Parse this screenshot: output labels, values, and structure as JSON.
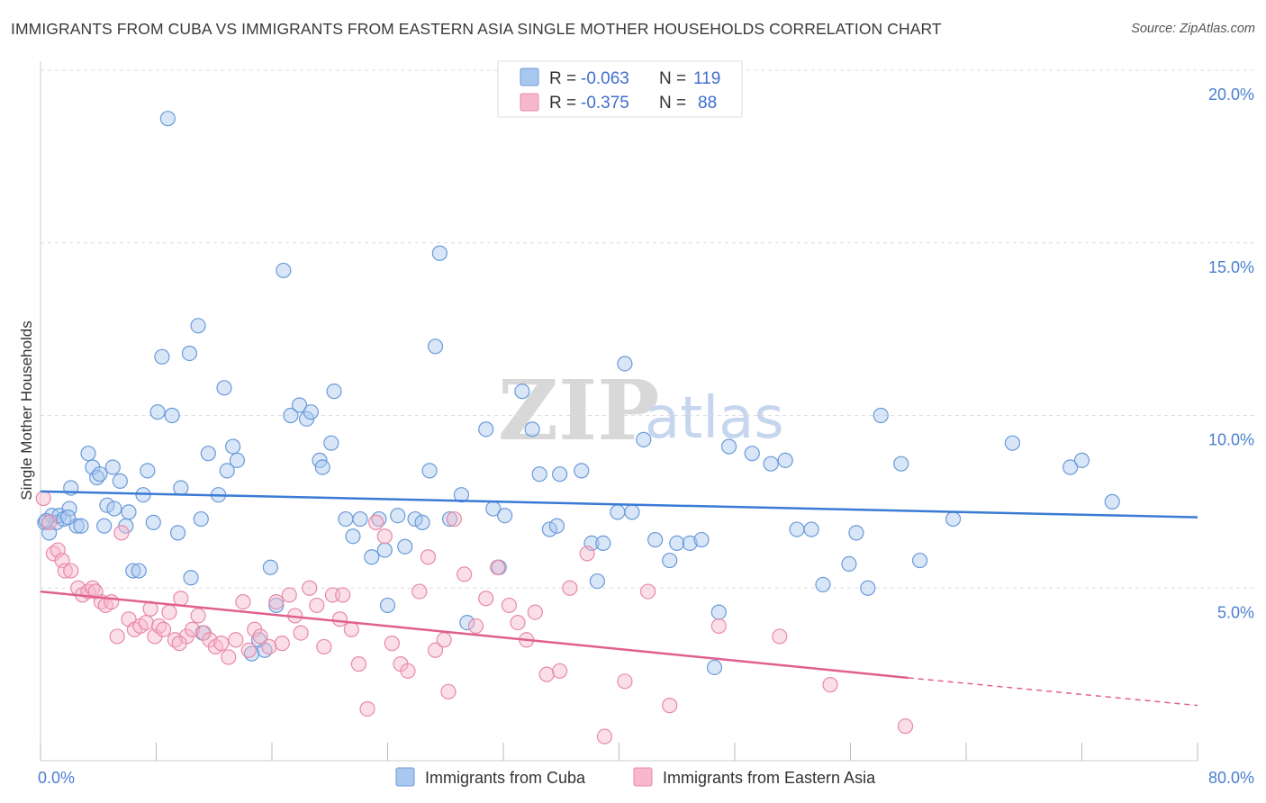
{
  "title": "IMMIGRANTS FROM CUBA VS IMMIGRANTS FROM EASTERN ASIA SINGLE MOTHER HOUSEHOLDS CORRELATION CHART",
  "source": "Source: ZipAtlas.com",
  "watermark": {
    "zip": "ZIP",
    "atlas": "atlas"
  },
  "colors": {
    "cuba_fill": "#a9c8f0",
    "cuba_stroke": "#6a9ad8",
    "cuba_line": "#3a7bd5",
    "asia_fill": "#f7b8cc",
    "asia_stroke": "#e88aa8",
    "asia_line": "#e0608f",
    "grid": "#dddddd",
    "tick_label": "#4a7fd1"
  },
  "legend": {
    "rows": [
      {
        "r_label": "R =",
        "r_value": "-0.063",
        "n_label": "N =",
        "n_value": "119"
      },
      {
        "r_label": "R =",
        "r_value": "-0.375",
        "n_label": "N =",
        "n_value": "88"
      }
    ]
  },
  "chart_data": {
    "type": "scatter",
    "title": "IMMIGRANTS FROM CUBA VS IMMIGRANTS FROM EASTERN ASIA SINGLE MOTHER HOUSEHOLDS CORRELATION CHART",
    "xlabel": "",
    "ylabel": "Single Mother Households",
    "xlim": [
      0,
      80
    ],
    "ylim": [
      0,
      20
    ],
    "x_tick_labels": [
      "0.0%",
      "80.0%"
    ],
    "y_ticks": [
      5,
      10,
      15,
      20
    ],
    "y_tick_labels": [
      "5.0%",
      "10.0%",
      "15.0%",
      "20.0%"
    ],
    "grid": "horizontal dashed",
    "legend_position": "top-center",
    "series": [
      {
        "name": "Immigrants from Cuba",
        "r": -0.063,
        "n": 119,
        "trend": {
          "x0": 0,
          "y0": 7.8,
          "x1": 80,
          "y1": 7.05
        },
        "points": [
          [
            0.3,
            6.9
          ],
          [
            0.6,
            6.6
          ],
          [
            0.8,
            7.1
          ],
          [
            1.1,
            6.9
          ],
          [
            1.3,
            7.1
          ],
          [
            1.6,
            7.0
          ],
          [
            2.0,
            7.3
          ],
          [
            2.1,
            7.9
          ],
          [
            2.5,
            6.8
          ],
          [
            2.8,
            6.8
          ],
          [
            3.3,
            8.9
          ],
          [
            3.6,
            8.5
          ],
          [
            3.9,
            8.2
          ],
          [
            4.1,
            8.3
          ],
          [
            4.4,
            6.8
          ],
          [
            4.6,
            7.4
          ],
          [
            5.0,
            8.5
          ],
          [
            5.1,
            7.3
          ],
          [
            5.5,
            8.1
          ],
          [
            5.9,
            6.8
          ],
          [
            6.1,
            7.2
          ],
          [
            6.4,
            5.5
          ],
          [
            6.8,
            5.5
          ],
          [
            7.1,
            7.7
          ],
          [
            7.4,
            8.4
          ],
          [
            7.8,
            6.9
          ],
          [
            8.1,
            10.1
          ],
          [
            8.4,
            11.7
          ],
          [
            8.8,
            18.6
          ],
          [
            9.1,
            10.0
          ],
          [
            9.5,
            6.6
          ],
          [
            9.7,
            7.9
          ],
          [
            10.3,
            11.8
          ],
          [
            10.4,
            5.3
          ],
          [
            10.9,
            12.6
          ],
          [
            11.2,
            3.7
          ],
          [
            11.6,
            8.9
          ],
          [
            12.3,
            7.7
          ],
          [
            12.7,
            10.8
          ],
          [
            12.9,
            8.4
          ],
          [
            13.3,
            9.1
          ],
          [
            13.6,
            8.7
          ],
          [
            14.6,
            3.1
          ],
          [
            15.1,
            3.5
          ],
          [
            15.5,
            3.2
          ],
          [
            15.9,
            5.6
          ],
          [
            16.3,
            4.5
          ],
          [
            16.8,
            14.2
          ],
          [
            17.3,
            10.0
          ],
          [
            17.9,
            10.3
          ],
          [
            18.4,
            9.9
          ],
          [
            18.7,
            10.1
          ],
          [
            19.3,
            8.7
          ],
          [
            19.5,
            8.5
          ],
          [
            20.1,
            9.2
          ],
          [
            20.3,
            10.7
          ],
          [
            21.1,
            7.0
          ],
          [
            21.6,
            6.5
          ],
          [
            22.1,
            7.0
          ],
          [
            22.9,
            5.9
          ],
          [
            23.4,
            7.0
          ],
          [
            23.8,
            6.1
          ],
          [
            24.7,
            7.1
          ],
          [
            25.2,
            6.2
          ],
          [
            25.9,
            7.0
          ],
          [
            26.4,
            6.9
          ],
          [
            26.9,
            8.4
          ],
          [
            27.3,
            12.0
          ],
          [
            27.6,
            14.7
          ],
          [
            28.3,
            7.0
          ],
          [
            29.1,
            7.7
          ],
          [
            29.5,
            4.0
          ],
          [
            30.8,
            9.6
          ],
          [
            31.3,
            7.3
          ],
          [
            31.7,
            5.6
          ],
          [
            32.1,
            7.1
          ],
          [
            33.3,
            10.7
          ],
          [
            34.0,
            9.6
          ],
          [
            34.5,
            8.3
          ],
          [
            35.2,
            6.7
          ],
          [
            35.9,
            8.3
          ],
          [
            37.4,
            8.4
          ],
          [
            38.1,
            6.3
          ],
          [
            38.5,
            5.2
          ],
          [
            38.9,
            6.3
          ],
          [
            39.9,
            7.2
          ],
          [
            40.4,
            11.5
          ],
          [
            40.9,
            7.2
          ],
          [
            41.7,
            9.3
          ],
          [
            42.5,
            6.4
          ],
          [
            43.5,
            5.8
          ],
          [
            44.0,
            6.3
          ],
          [
            44.9,
            6.3
          ],
          [
            45.7,
            6.4
          ],
          [
            46.6,
            2.7
          ],
          [
            46.9,
            4.3
          ],
          [
            47.6,
            9.1
          ],
          [
            49.2,
            8.9
          ],
          [
            50.5,
            8.6
          ],
          [
            51.5,
            8.7
          ],
          [
            52.3,
            6.7
          ],
          [
            53.3,
            6.7
          ],
          [
            54.1,
            5.1
          ],
          [
            55.9,
            5.7
          ],
          [
            56.4,
            6.6
          ],
          [
            57.2,
            5.0
          ],
          [
            58.1,
            10.0
          ],
          [
            59.5,
            8.6
          ],
          [
            60.8,
            5.8
          ],
          [
            63.1,
            7.0
          ],
          [
            67.2,
            9.2
          ],
          [
            71.2,
            8.5
          ],
          [
            72.0,
            8.7
          ],
          [
            74.1,
            7.5
          ],
          [
            35.7,
            6.8
          ],
          [
            24.0,
            4.5
          ],
          [
            11.1,
            7.0
          ],
          [
            0.4,
            6.95
          ],
          [
            1.9,
            7.05
          ]
        ]
      },
      {
        "name": "Immigrants from Eastern Asia",
        "r": -0.375,
        "n": 88,
        "trend": {
          "x0": 0,
          "y0": 4.9,
          "x1": 60,
          "y1": 2.4
        },
        "trend_dashed_to": {
          "x": 80,
          "y": 1.6
        },
        "points": [
          [
            0.2,
            7.6
          ],
          [
            0.6,
            6.9
          ],
          [
            0.9,
            6.0
          ],
          [
            1.2,
            6.1
          ],
          [
            1.5,
            5.8
          ],
          [
            1.7,
            5.5
          ],
          [
            2.1,
            5.5
          ],
          [
            2.6,
            5.0
          ],
          [
            2.9,
            4.8
          ],
          [
            3.3,
            4.9
          ],
          [
            3.6,
            5.0
          ],
          [
            3.8,
            4.9
          ],
          [
            4.2,
            4.6
          ],
          [
            4.5,
            4.5
          ],
          [
            4.9,
            4.6
          ],
          [
            5.3,
            3.6
          ],
          [
            5.6,
            6.6
          ],
          [
            6.1,
            4.1
          ],
          [
            6.5,
            3.8
          ],
          [
            6.9,
            3.9
          ],
          [
            7.3,
            4.0
          ],
          [
            7.6,
            4.4
          ],
          [
            7.9,
            3.6
          ],
          [
            8.2,
            3.9
          ],
          [
            8.5,
            3.8
          ],
          [
            8.9,
            4.3
          ],
          [
            9.3,
            3.5
          ],
          [
            9.7,
            4.7
          ],
          [
            10.1,
            3.6
          ],
          [
            10.5,
            3.8
          ],
          [
            10.9,
            4.2
          ],
          [
            11.3,
            3.7
          ],
          [
            11.7,
            3.5
          ],
          [
            12.1,
            3.3
          ],
          [
            12.5,
            3.4
          ],
          [
            13.0,
            3.0
          ],
          [
            13.5,
            3.5
          ],
          [
            14.0,
            4.6
          ],
          [
            14.4,
            3.2
          ],
          [
            14.8,
            3.8
          ],
          [
            15.2,
            3.6
          ],
          [
            15.8,
            3.3
          ],
          [
            16.3,
            4.6
          ],
          [
            16.7,
            3.4
          ],
          [
            17.2,
            4.8
          ],
          [
            17.6,
            4.2
          ],
          [
            18.0,
            3.7
          ],
          [
            18.6,
            5.0
          ],
          [
            19.1,
            4.5
          ],
          [
            19.6,
            3.3
          ],
          [
            20.2,
            4.8
          ],
          [
            20.9,
            4.8
          ],
          [
            21.5,
            3.8
          ],
          [
            22.0,
            2.8
          ],
          [
            22.6,
            1.5
          ],
          [
            23.2,
            6.9
          ],
          [
            23.8,
            6.5
          ],
          [
            24.3,
            3.4
          ],
          [
            24.9,
            2.8
          ],
          [
            25.4,
            2.6
          ],
          [
            26.2,
            4.9
          ],
          [
            26.8,
            5.9
          ],
          [
            27.3,
            3.2
          ],
          [
            27.9,
            3.5
          ],
          [
            28.6,
            7.0
          ],
          [
            29.3,
            5.4
          ],
          [
            30.1,
            3.9
          ],
          [
            30.8,
            4.7
          ],
          [
            31.6,
            5.6
          ],
          [
            32.4,
            4.5
          ],
          [
            33.0,
            4.0
          ],
          [
            33.6,
            3.5
          ],
          [
            34.2,
            4.3
          ],
          [
            35.0,
            2.5
          ],
          [
            35.9,
            2.6
          ],
          [
            36.6,
            5.0
          ],
          [
            37.8,
            6.0
          ],
          [
            39.0,
            0.7
          ],
          [
            40.4,
            2.3
          ],
          [
            42.0,
            4.9
          ],
          [
            43.5,
            1.6
          ],
          [
            46.9,
            3.9
          ],
          [
            51.1,
            3.6
          ],
          [
            54.6,
            2.2
          ],
          [
            59.8,
            1.0
          ],
          [
            9.6,
            3.4
          ],
          [
            20.7,
            4.1
          ],
          [
            28.2,
            2.0
          ]
        ]
      }
    ]
  },
  "bottom_legend": {
    "items": [
      {
        "label": "Immigrants from Cuba"
      },
      {
        "label": "Immigrants from Eastern Asia"
      }
    ]
  }
}
